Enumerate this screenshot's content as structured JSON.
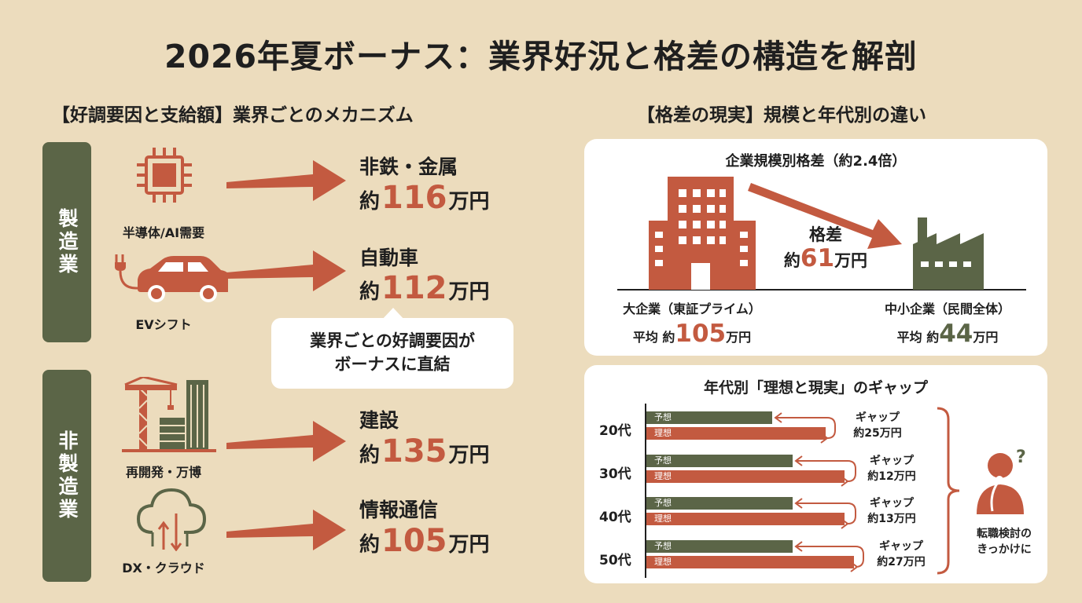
{
  "title": "2026年夏ボーナス：業界好況と格差の構造を解剖",
  "left": {
    "heading": "【好調要因と支給額】業界ごとのメカニズム",
    "categories": [
      "製造業",
      "非製造業"
    ],
    "items": [
      {
        "icon": "chip-icon",
        "label": "半導体/AI需要",
        "name": "非鉄・金属",
        "prefix": "約",
        "num": "116",
        "suffix": "万円"
      },
      {
        "icon": "ev-car-icon",
        "label": "EVシフト",
        "name": "自動車",
        "prefix": "約",
        "num": "112",
        "suffix": "万円"
      },
      {
        "icon": "construction-crane-icon",
        "label": "再開発・万博",
        "name": "建設",
        "prefix": "約",
        "num": "135",
        "suffix": "万円"
      },
      {
        "icon": "cloud-icon",
        "label": "DX・クラウド",
        "name": "情報通信",
        "prefix": "約",
        "num": "105",
        "suffix": "万円"
      }
    ],
    "bubble": [
      "業界ごとの好調要因が",
      "ボーナスに直結"
    ]
  },
  "right": {
    "heading": "【格差の現実】規模と年代別の違い",
    "scale": {
      "title": "企業規模別格差（約2.4倍）",
      "large_label": "大企業（東証プライム）",
      "large_prefix": "平均 約",
      "large_num": "105",
      "small_label": "中小企業（民間全体）",
      "small_prefix": "平均 約",
      "small_num": "44",
      "unit": "万円",
      "gap_label": "格差",
      "gap_prefix": "約",
      "gap_num": "61",
      "gap_unit": "万円"
    },
    "age_chart": {
      "title": "年代別「理想と現実」のギャップ",
      "side_label": [
        "転職検討の",
        "きっかけに"
      ]
    }
  },
  "chart_data": [
    {
      "type": "bar",
      "title": "企業規模別格差（約2.4倍）",
      "categories": [
        "大企業（東証プライム）",
        "中小企業（民間全体）"
      ],
      "values": [
        105,
        44
      ],
      "unit": "万円",
      "annotations": [
        "格差 約61万円"
      ]
    },
    {
      "type": "bar",
      "title": "年代別「理想と現実」のギャップ",
      "categories": [
        "20代",
        "30代",
        "40代",
        "50代"
      ],
      "series": [
        {
          "name": "予想",
          "values": [
            null,
            null,
            null,
            null
          ]
        },
        {
          "name": "理想",
          "values": [
            null,
            null,
            null,
            null
          ]
        }
      ],
      "gaps": [
        "約25万円",
        "約12万円",
        "約13万円",
        "約27万円"
      ],
      "gap_label": "ギャップ"
    }
  ],
  "colors": {
    "accent": "#c35a40",
    "green": "#5b6547",
    "background": "#ecdcbd"
  }
}
